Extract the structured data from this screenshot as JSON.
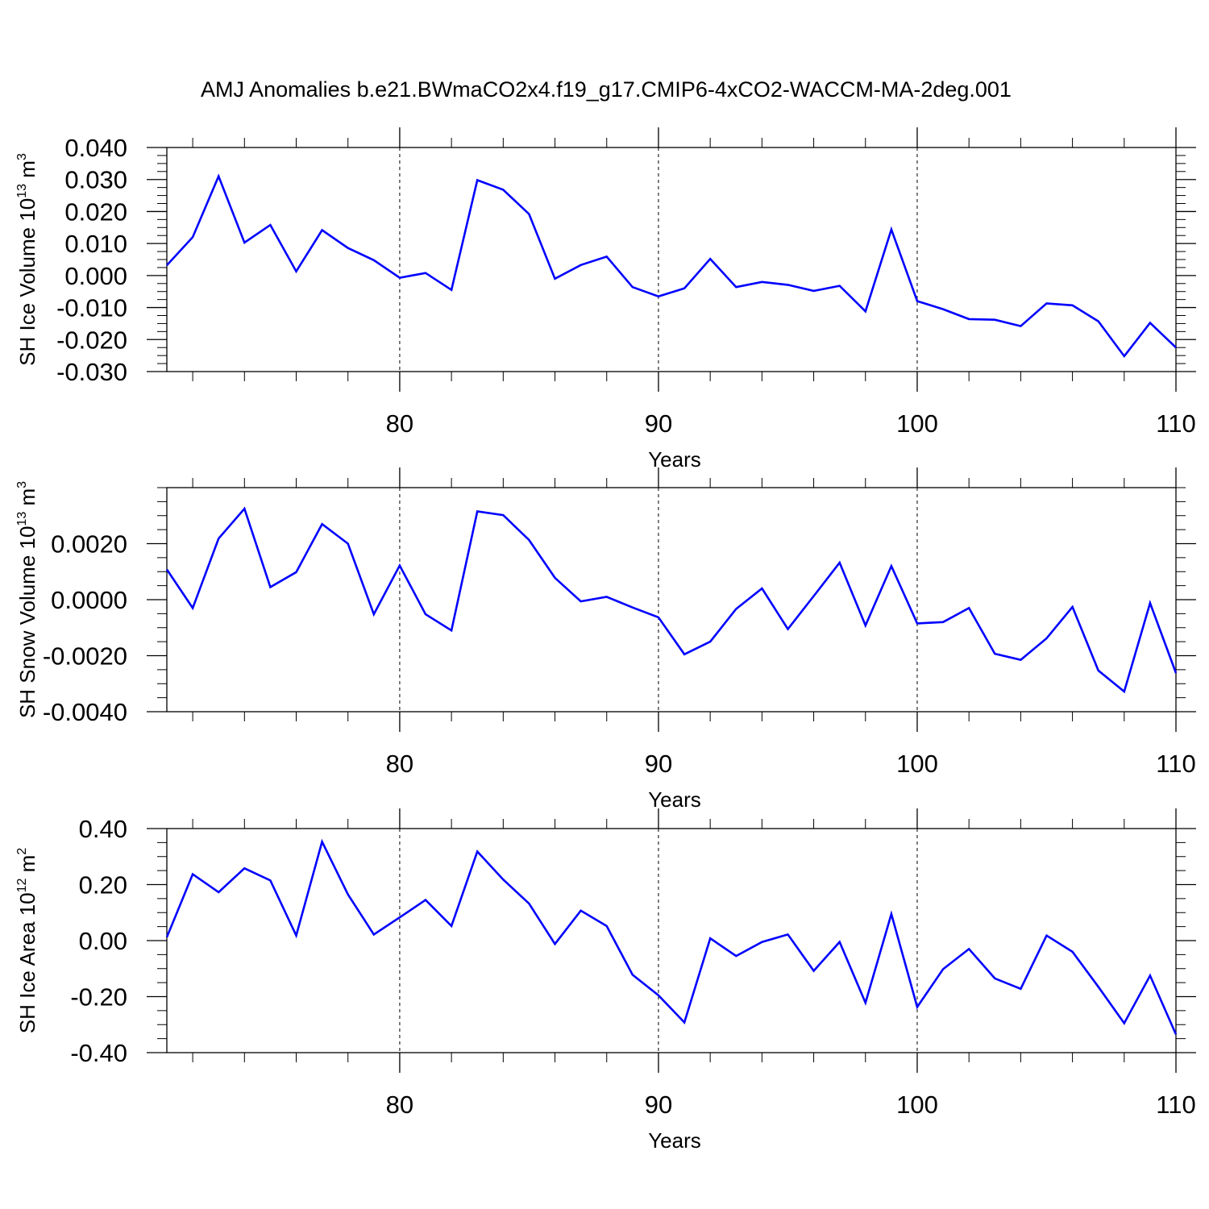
{
  "figure": {
    "title": "AMJ Anomalies b.e21.BWmaCO2x4.f19_g17.CMIP6-4xCO2-WACCM-MA-2deg.001"
  },
  "chart_data": [
    {
      "type": "line",
      "id": "sh-ice-volume",
      "xlabel": "Years",
      "ylabel_parts": [
        "SH Ice Volume 10",
        "13",
        " m",
        "3"
      ],
      "xlim": [
        71,
        110
      ],
      "ylim": [
        -0.03,
        0.04
      ],
      "xticks": [
        80,
        90,
        100,
        110
      ],
      "xtick_labels": [
        "80",
        "90",
        "100",
        "110"
      ],
      "xminor": [
        72,
        74,
        76,
        78,
        82,
        84,
        86,
        88,
        92,
        94,
        96,
        98,
        102,
        104,
        106,
        108
      ],
      "yticks": [
        -0.03,
        -0.02,
        -0.01,
        0.0,
        0.01,
        0.02,
        0.03,
        0.04
      ],
      "ytick_labels": [
        "-0.030",
        "-0.020",
        "-0.010",
        "0.000",
        "0.010",
        "0.020",
        "0.030",
        "0.040"
      ],
      "yminor_step": 0.0025,
      "grid_x": [
        80,
        90,
        100
      ],
      "line_color": "#0000ff",
      "x": [
        71,
        72,
        73,
        74,
        75,
        76,
        77,
        78,
        79,
        80,
        81,
        82,
        83,
        84,
        85,
        86,
        87,
        88,
        89,
        90,
        91,
        92,
        93,
        94,
        95,
        96,
        97,
        98,
        99,
        100,
        101,
        102,
        103,
        104,
        105,
        106,
        107,
        108,
        109,
        110
      ],
      "y": [
        0.0032,
        0.012,
        0.031,
        0.0103,
        0.0158,
        0.0013,
        0.0142,
        0.0086,
        0.0048,
        -0.0007,
        0.0008,
        -0.0045,
        0.0298,
        0.0268,
        0.0192,
        -0.001,
        0.0033,
        0.0059,
        -0.0036,
        -0.0065,
        -0.004,
        0.0052,
        -0.0036,
        -0.002,
        -0.0029,
        -0.0048,
        -0.0032,
        -0.0112,
        0.0144,
        -0.008,
        -0.0105,
        -0.0136,
        -0.0138,
        -0.0158,
        -0.0087,
        -0.0093,
        -0.0143,
        -0.0252,
        -0.0148,
        -0.0225
      ]
    },
    {
      "type": "line",
      "id": "sh-snow-volume",
      "xlabel": "Years",
      "ylabel_parts": [
        "SH Snow Volume 10",
        "13",
        " m",
        "3"
      ],
      "xlim": [
        71,
        110
      ],
      "ylim": [
        -0.004,
        0.004
      ],
      "xticks": [
        80,
        90,
        100,
        110
      ],
      "xtick_labels": [
        "80",
        "90",
        "100",
        "110"
      ],
      "xminor": [
        72,
        74,
        76,
        78,
        82,
        84,
        86,
        88,
        92,
        94,
        96,
        98,
        102,
        104,
        106,
        108
      ],
      "yticks": [
        -0.004,
        -0.002,
        0.0,
        0.002
      ],
      "ytick_labels": [
        "-0.0040",
        "-0.0020",
        "0.0000",
        "0.0020"
      ],
      "yminor_step": 0.0005,
      "grid_x": [
        80,
        90,
        100
      ],
      "line_color": "#0000ff",
      "x": [
        71,
        72,
        73,
        74,
        75,
        76,
        77,
        78,
        79,
        80,
        81,
        82,
        83,
        84,
        85,
        86,
        87,
        88,
        89,
        90,
        91,
        92,
        93,
        94,
        95,
        96,
        97,
        98,
        99,
        100,
        101,
        102,
        103,
        104,
        105,
        106,
        107,
        108,
        109,
        110
      ],
      "y": [
        0.00108,
        -0.0003,
        0.00218,
        0.00325,
        0.00045,
        0.00098,
        0.0027,
        0.002,
        -0.00052,
        0.00122,
        -0.00052,
        -0.0011,
        0.00315,
        0.00302,
        0.00213,
        0.00078,
        -6e-05,
        0.0001,
        -0.00028,
        -0.00063,
        -0.00195,
        -0.0015,
        -0.00033,
        0.0004,
        -0.00105,
        0.00013,
        0.00132,
        -0.00092,
        0.0012,
        -0.00085,
        -0.0008,
        -0.0003,
        -0.00193,
        -0.00215,
        -0.00138,
        -0.00026,
        -0.00253,
        -0.00328,
        -0.00012,
        -0.00262
      ]
    },
    {
      "type": "line",
      "id": "sh-ice-area",
      "xlabel": "Years",
      "ylabel_parts": [
        "SH Ice Area 10",
        "12",
        " m",
        "2"
      ],
      "xlim": [
        71,
        110
      ],
      "ylim": [
        -0.4,
        0.4
      ],
      "xticks": [
        80,
        90,
        100,
        110
      ],
      "xtick_labels": [
        "80",
        "90",
        "100",
        "110"
      ],
      "xminor": [
        72,
        74,
        76,
        78,
        82,
        84,
        86,
        88,
        92,
        94,
        96,
        98,
        102,
        104,
        106,
        108
      ],
      "yticks": [
        -0.4,
        -0.2,
        0.0,
        0.2,
        0.4
      ],
      "ytick_labels": [
        "-0.40",
        "-0.20",
        "0.00",
        "0.20",
        "0.40"
      ],
      "yminor_step": 0.05,
      "grid_x": [
        80,
        90,
        100
      ],
      "line_color": "#0000ff",
      "x": [
        71,
        72,
        73,
        74,
        75,
        76,
        77,
        78,
        79,
        80,
        81,
        82,
        83,
        84,
        85,
        86,
        87,
        88,
        89,
        90,
        91,
        92,
        93,
        94,
        95,
        96,
        97,
        98,
        99,
        100,
        101,
        102,
        103,
        104,
        105,
        106,
        107,
        108,
        109,
        110
      ],
      "y": [
        0.012,
        0.237,
        0.173,
        0.258,
        0.215,
        0.018,
        0.353,
        0.165,
        0.022,
        0.083,
        0.145,
        0.052,
        0.318,
        0.218,
        0.132,
        -0.012,
        0.107,
        0.052,
        -0.122,
        -0.195,
        -0.292,
        0.008,
        -0.055,
        -0.005,
        0.022,
        -0.108,
        -0.005,
        -0.222,
        0.095,
        -0.237,
        -0.102,
        -0.03,
        -0.135,
        -0.172,
        0.018,
        -0.04,
        -0.165,
        -0.295,
        -0.125,
        -0.335
      ]
    }
  ]
}
